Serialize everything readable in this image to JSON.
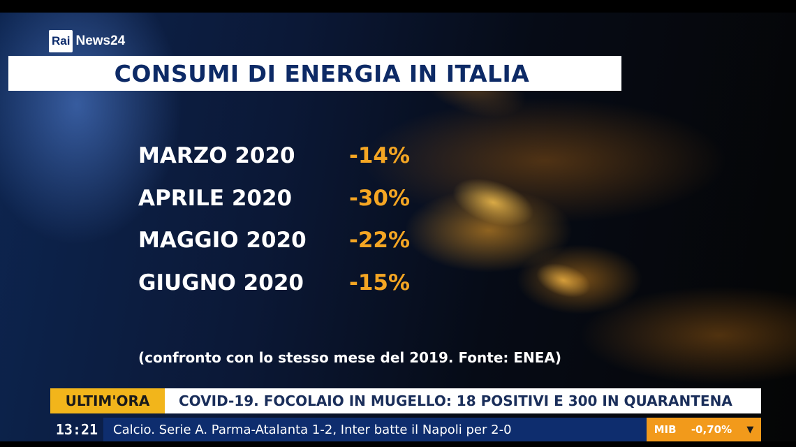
{
  "channel": {
    "logo_rai": "Rai",
    "logo_news": "News24"
  },
  "title": "CONSUMI DI ENERGIA IN ITALIA",
  "rows": [
    {
      "label": "MARZO 2020",
      "value": "-14%"
    },
    {
      "label": "APRILE 2020",
      "value": "-30%"
    },
    {
      "label": "MAGGIO 2020",
      "value": "-22%"
    },
    {
      "label": "GIUGNO 2020",
      "value": "-15%"
    }
  ],
  "note": "(confronto con lo stesso mese del 2019. Fonte: ENEA)",
  "breaking": {
    "tag": "ULTIM'ORA",
    "text": "COVID-19. FOCOLAIO IN MUGELLO: 18 POSITIVI E 300 IN QUARANTENA"
  },
  "ticker": {
    "clock": "13:21",
    "text": "Calcio. Serie A. Parma-Atalanta 1-2, Inter batte il Napoli per 2-0",
    "market_index": "MIB",
    "market_change": "-0,70%",
    "market_direction_icon": "down-triangle-icon"
  },
  "colors": {
    "title_text": "#0d2a66",
    "value_accent": "#f5a623",
    "breaking_tag": "#f2b51b",
    "ticker_bg": "#0e2d6e",
    "market_bg": "#f29a1b"
  }
}
